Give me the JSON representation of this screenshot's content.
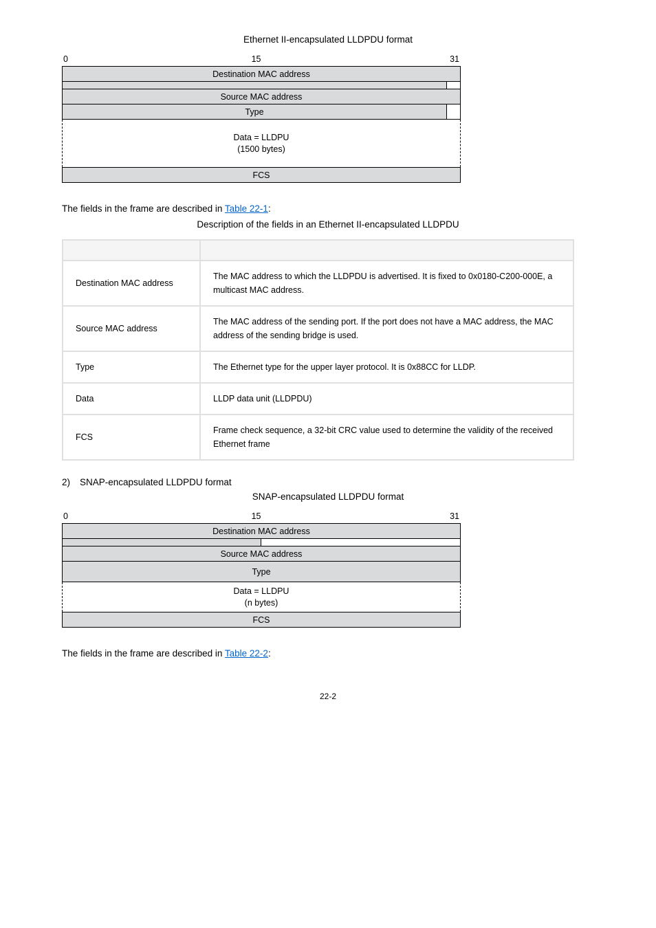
{
  "fig1": {
    "caption": "Ethernet II-encapsulated LLDPDU format",
    "scale": {
      "left": "0",
      "mid": "15",
      "right": "31"
    },
    "rows": {
      "dest": "Destination MAC address",
      "src": "Source MAC address",
      "type": "Type",
      "data_l1": "Data = LLDPU",
      "data_l2": "(1500 bytes)",
      "fcs": "FCS"
    }
  },
  "para1_a": "The fields in the frame are described in ",
  "para1_link": "Table 22-1",
  "para1_b": ":",
  "table1": {
    "caption": "Description of the fields in an Ethernet II-encapsulated LLDPDU",
    "rows": [
      {
        "f": "Destination MAC address",
        "d": "The MAC address to which the LLDPDU is advertised. It is fixed to 0x0180-C200-000E, a multicast MAC address."
      },
      {
        "f": "Source MAC address",
        "d": "The MAC address of the sending port. If the port does not have a MAC address, the MAC address of the sending bridge is used."
      },
      {
        "f": "Type",
        "d": "The Ethernet type for the upper layer protocol. It is 0x88CC for LLDP."
      },
      {
        "f": "Data",
        "d": "LLDP data unit (LLDPDU)"
      },
      {
        "f": "FCS",
        "d": "Frame check sequence, a 32-bit CRC value used to determine the validity of the received Ethernet frame"
      }
    ]
  },
  "item2": {
    "num": "2)",
    "text": "SNAP-encapsulated LLDPDU format"
  },
  "fig2": {
    "caption": "SNAP-encapsulated LLDPDU format",
    "scale": {
      "left": "0",
      "mid": "15",
      "right": "31"
    },
    "rows": {
      "dest": "Destination MAC address",
      "src": "Source MAC address",
      "type": "Type",
      "data_l1": "Data = LLDPU",
      "data_l2": "(n bytes)",
      "fcs": "FCS"
    }
  },
  "para2_a": "The fields in the frame are described in ",
  "para2_link": "Table 22-2",
  "para2_b": ":",
  "pagenum": "22-2"
}
